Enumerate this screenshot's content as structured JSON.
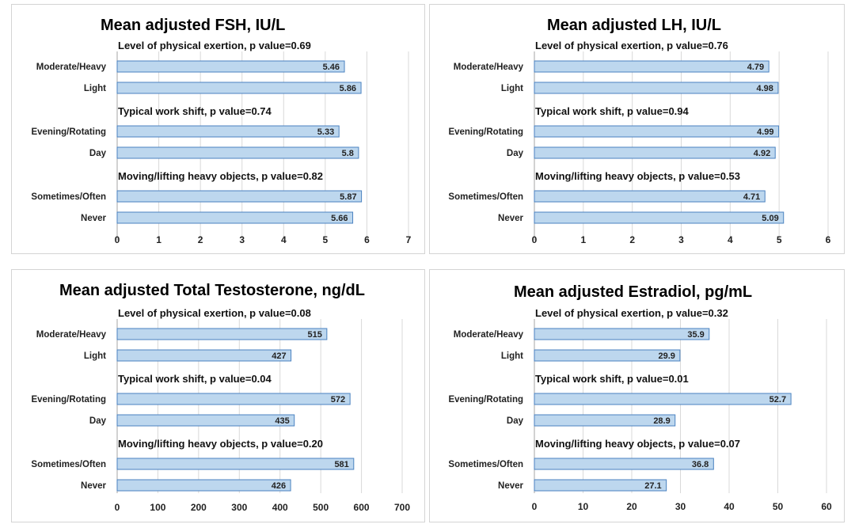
{
  "colors": {
    "bar_fill": "#bdd7ee",
    "bar_stroke": "#4a82c0",
    "grid": "#d9d9d9"
  },
  "chart_data": [
    {
      "type": "bar",
      "orientation": "horizontal",
      "title": "Mean adjusted FSH, IU/L",
      "xlim": [
        0,
        7
      ],
      "ticks": [
        "0",
        "1",
        "2",
        "3",
        "4",
        "5",
        "6",
        "7"
      ],
      "grid": true,
      "groups": [
        {
          "label": "Level of physical exertion, p value=0.69",
          "categories": [
            "Moderate/Heavy",
            "Light"
          ],
          "values": [
            5.46,
            5.86
          ],
          "value_labels": [
            "5.46",
            "5.86"
          ]
        },
        {
          "label": "Typical work shift, p value=0.74",
          "categories": [
            "Evening/Rotating",
            "Day"
          ],
          "values": [
            5.33,
            5.8
          ],
          "value_labels": [
            "5.33",
            "5.8"
          ]
        },
        {
          "label": "Moving/lifting heavy objects, p value=0.82",
          "categories": [
            "Sometimes/Often",
            "Never"
          ],
          "values": [
            5.87,
            5.66
          ],
          "value_labels": [
            "5.87",
            "5.66"
          ]
        }
      ]
    },
    {
      "type": "bar",
      "orientation": "horizontal",
      "title": "Mean adjusted LH, IU/L",
      "xlim": [
        0,
        6
      ],
      "ticks": [
        "0",
        "1",
        "2",
        "3",
        "4",
        "5",
        "6"
      ],
      "grid": true,
      "groups": [
        {
          "label": "Level of physical exertion, p value=0.76",
          "categories": [
            "Moderate/Heavy",
            "Light"
          ],
          "values": [
            4.79,
            4.98
          ],
          "value_labels": [
            "4.79",
            "4.98"
          ]
        },
        {
          "label": "Typical work shift, p value=0.94",
          "categories": [
            "Evening/Rotating",
            "Day"
          ],
          "values": [
            4.99,
            4.92
          ],
          "value_labels": [
            "4.99",
            "4.92"
          ]
        },
        {
          "label": "Moving/lifting heavy objects, p value=0.53",
          "categories": [
            "Sometimes/Often",
            "Never"
          ],
          "values": [
            4.71,
            5.09
          ],
          "value_labels": [
            "4.71",
            "5.09"
          ]
        }
      ]
    },
    {
      "type": "bar",
      "orientation": "horizontal",
      "title": "Mean adjusted Total Testosterone, ng/dL",
      "xlim": [
        0,
        700
      ],
      "ticks": [
        "0",
        "100",
        "200",
        "300",
        "400",
        "500",
        "600",
        "700"
      ],
      "grid": true,
      "groups": [
        {
          "label": "Level of physical exertion, p value=0.08",
          "categories": [
            "Moderate/Heavy",
            "Light"
          ],
          "values": [
            515,
            427
          ],
          "value_labels": [
            "515",
            "427"
          ]
        },
        {
          "label": "Typical work shift, p value=0.04",
          "categories": [
            "Evening/Rotating",
            "Day"
          ],
          "values": [
            572,
            435
          ],
          "value_labels": [
            "572",
            "435"
          ]
        },
        {
          "label": "Moving/lifting heavy objects, p value=0.20",
          "categories": [
            "Sometimes/Often",
            "Never"
          ],
          "values": [
            581,
            426
          ],
          "value_labels": [
            "581",
            "426"
          ]
        }
      ]
    },
    {
      "type": "bar",
      "orientation": "horizontal",
      "title": "Mean adjusted Estradiol, pg/mL",
      "xlim": [
        0,
        60
      ],
      "ticks": [
        "0",
        "10",
        "20",
        "30",
        "40",
        "50",
        "60"
      ],
      "grid": true,
      "groups": [
        {
          "label": "Level of physical exertion, p value=0.32",
          "categories": [
            "Moderate/Heavy",
            "Light"
          ],
          "values": [
            35.9,
            29.9
          ],
          "value_labels": [
            "35.9",
            "29.9"
          ]
        },
        {
          "label": "Typical work shift, p value=0.01",
          "categories": [
            "Evening/Rotating",
            "Day"
          ],
          "values": [
            52.7,
            28.9
          ],
          "value_labels": [
            "52.7",
            "28.9"
          ]
        },
        {
          "label": "Moving/lifting heavy objects, p value=0.07",
          "categories": [
            "Sometimes/Often",
            "Never"
          ],
          "values": [
            36.8,
            27.1
          ],
          "value_labels": [
            "36.8",
            "27.1"
          ]
        }
      ]
    }
  ]
}
